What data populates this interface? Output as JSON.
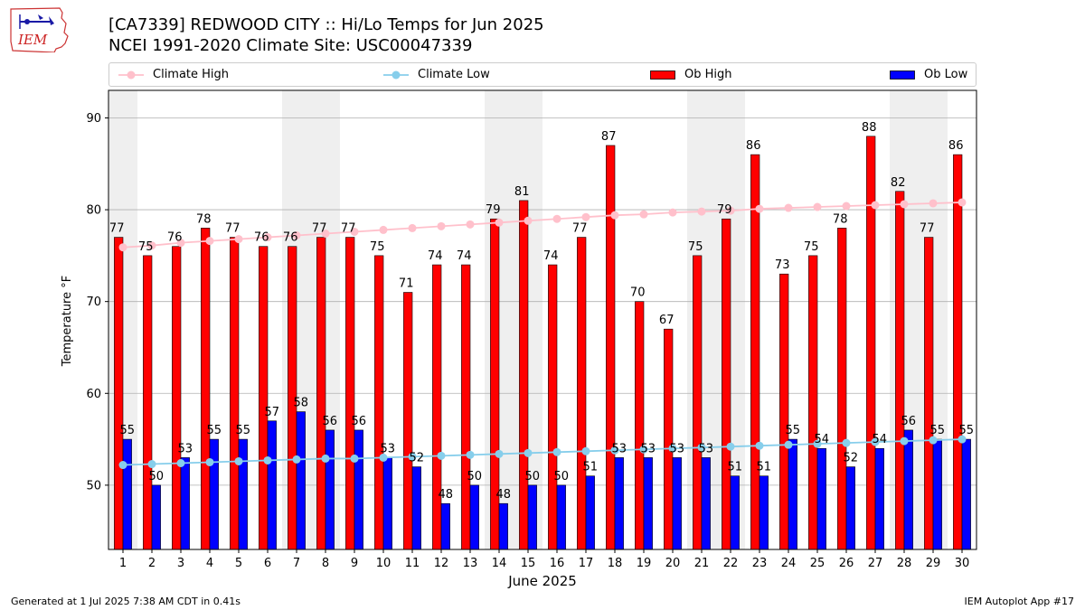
{
  "header": {
    "logo_text": "IEM",
    "title_line1": "[CA7339] REDWOOD CITY :: Hi/Lo Temps for Jun 2025",
    "title_line2": "NCEI 1991-2020 Climate Site: USC00047339"
  },
  "legend": {
    "climate_high": "Climate High",
    "climate_low": "Climate Low",
    "ob_high": "Ob High",
    "ob_low": "Ob Low"
  },
  "footer": {
    "generated": "Generated at 1 Jul 2025 7:38 AM CDT in 0.41s",
    "app": "IEM Autoplot App #17"
  },
  "chart_data": {
    "type": "bar",
    "xlabel": "June 2025",
    "ylabel": "Temperature °F",
    "ylim": [
      43,
      93
    ],
    "yticks": [
      50,
      60,
      70,
      80,
      90
    ],
    "grid": true,
    "legend_position": "top",
    "categories": [
      "1",
      "2",
      "3",
      "4",
      "5",
      "6",
      "7",
      "8",
      "9",
      "10",
      "11",
      "12",
      "13",
      "14",
      "15",
      "16",
      "17",
      "18",
      "19",
      "20",
      "21",
      "22",
      "23",
      "24",
      "25",
      "26",
      "27",
      "28",
      "29",
      "30"
    ],
    "weekend_shading": [
      [
        1,
        1
      ],
      [
        7,
        8
      ],
      [
        14,
        15
      ],
      [
        21,
        22
      ],
      [
        28,
        29
      ]
    ],
    "series": [
      {
        "name": "Ob High",
        "kind": "bar",
        "color": "#ff0000",
        "values": [
          77,
          75,
          76,
          78,
          77,
          76,
          76,
          77,
          77,
          75,
          71,
          74,
          74,
          79,
          81,
          74,
          77,
          87,
          70,
          67,
          75,
          79,
          86,
          73,
          75,
          78,
          88,
          82,
          77,
          86
        ]
      },
      {
        "name": "Ob Low",
        "kind": "bar",
        "color": "#0000ff",
        "values": [
          55,
          50,
          53,
          55,
          55,
          57,
          58,
          56,
          56,
          53,
          52,
          48,
          50,
          48,
          50,
          50,
          51,
          53,
          53,
          53,
          53,
          51,
          51,
          55,
          54,
          52,
          54,
          56,
          55,
          55
        ]
      },
      {
        "name": "Climate High",
        "kind": "line",
        "color": "#ffc0cb",
        "values": [
          75.9,
          76.1,
          76.4,
          76.6,
          76.8,
          77.0,
          77.2,
          77.4,
          77.6,
          77.8,
          78.0,
          78.2,
          78.4,
          78.6,
          78.8,
          79.0,
          79.2,
          79.4,
          79.5,
          79.7,
          79.8,
          79.9,
          80.1,
          80.2,
          80.3,
          80.4,
          80.5,
          80.6,
          80.7,
          80.8
        ]
      },
      {
        "name": "Climate Low",
        "kind": "line",
        "color": "#87ceeb",
        "values": [
          52.2,
          52.3,
          52.4,
          52.5,
          52.6,
          52.7,
          52.8,
          52.9,
          52.9,
          53.0,
          53.1,
          53.2,
          53.3,
          53.4,
          53.5,
          53.6,
          53.7,
          53.8,
          53.9,
          54.0,
          54.1,
          54.2,
          54.3,
          54.4,
          54.5,
          54.6,
          54.7,
          54.8,
          54.9,
          55.0
        ]
      }
    ]
  }
}
